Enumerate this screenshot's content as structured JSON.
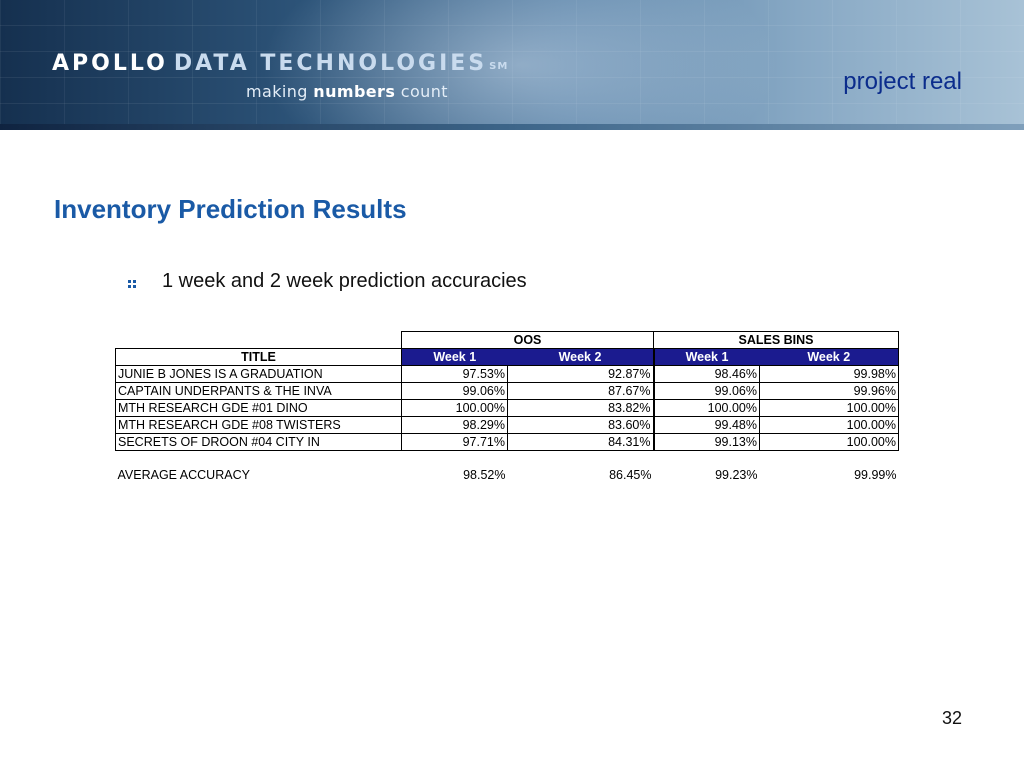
{
  "header": {
    "logo_primary": "APOLLO",
    "logo_secondary": "DATA TECHNOLOGIES",
    "logo_mark": "SM",
    "tagline_before": "making ",
    "tagline_bold": "numbers",
    "tagline_after": " count",
    "project_label": "project real"
  },
  "slide": {
    "title": "Inventory Prediction Results",
    "bullets": [
      {
        "text": "1 week and 2 week prediction accuracies",
        "icon": "four-dot-bullet-icon"
      }
    ],
    "page_number": "32"
  },
  "table": {
    "group_headers": [
      "OOS",
      "SALES BINS"
    ],
    "column_headers": [
      "TITLE",
      "Week 1",
      "Week 2",
      "Week 1",
      "Week 2"
    ],
    "rows": [
      {
        "title": "JUNIE B JONES IS A GRADUATION",
        "values": [
          "97.53%",
          "92.87%",
          "98.46%",
          "99.98%"
        ]
      },
      {
        "title": "CAPTAIN UNDERPANTS & THE INVA",
        "values": [
          "99.06%",
          "87.67%",
          "99.06%",
          "99.96%"
        ]
      },
      {
        "title": "MTH RESEARCH GDE #01 DINO",
        "values": [
          "100.00%",
          "83.82%",
          "100.00%",
          "100.00%"
        ]
      },
      {
        "title": "MTH RESEARCH GDE #08 TWISTERS",
        "values": [
          "98.29%",
          "83.60%",
          "99.48%",
          "100.00%"
        ]
      },
      {
        "title": "SECRETS OF DROON #04 CITY IN",
        "values": [
          "97.71%",
          "84.31%",
          "99.13%",
          "100.00%"
        ]
      }
    ],
    "average": {
      "label": "AVERAGE ACCURACY",
      "values": [
        "98.52%",
        "86.45%",
        "99.23%",
        "99.99%"
      ]
    }
  },
  "colors": {
    "title_blue": "#1a5aa6",
    "project_label_blue": "#0b2c8c",
    "table_header_navy": "#1b1b8f",
    "banner_dark": "#15304f",
    "banner_light": "#a8c2d6"
  }
}
